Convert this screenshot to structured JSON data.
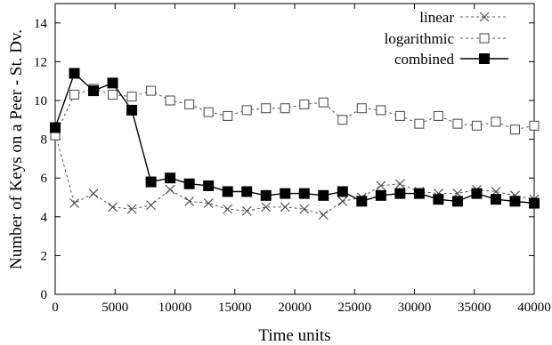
{
  "chart_data": {
    "type": "line",
    "xlabel": "Time units",
    "ylabel": "Number of Keys on a Peer - St. Dv.",
    "xlim": [
      0,
      40000
    ],
    "ylim": [
      0,
      15
    ],
    "xticks": [
      "0",
      "5000",
      "10000",
      "15000",
      "20000",
      "25000",
      "30000",
      "35000",
      "40000"
    ],
    "yticks": [
      "0",
      "2",
      "4",
      "6",
      "8",
      "10",
      "12",
      "14"
    ],
    "legend_position": "top-right",
    "grid": false,
    "series": [
      {
        "name": "linear",
        "marker": "cross",
        "line": "dashed",
        "x": [
          0,
          1600,
          3200,
          4800,
          6400,
          8000,
          9600,
          11200,
          12800,
          14400,
          16000,
          17600,
          19200,
          20800,
          22400,
          24000,
          25600,
          27200,
          28800,
          30400,
          32000,
          33600,
          35200,
          36800,
          38400,
          40000
        ],
        "y": [
          8.3,
          4.7,
          5.2,
          4.5,
          4.4,
          4.6,
          5.4,
          4.8,
          4.7,
          4.4,
          4.3,
          4.5,
          4.5,
          4.4,
          4.1,
          4.8,
          5.0,
          5.6,
          5.7,
          5.3,
          5.2,
          5.2,
          5.4,
          5.3,
          5.1,
          4.9
        ]
      },
      {
        "name": "logarithmic",
        "marker": "open-square",
        "line": "dashed",
        "x": [
          0,
          1600,
          3200,
          4800,
          6400,
          8000,
          9600,
          11200,
          12800,
          14400,
          16000,
          17600,
          19200,
          20800,
          22400,
          24000,
          25600,
          27200,
          28800,
          30400,
          32000,
          33600,
          35200,
          36800,
          38400,
          40000
        ],
        "y": [
          8.2,
          10.3,
          10.6,
          10.3,
          10.2,
          10.5,
          10.0,
          9.8,
          9.4,
          9.2,
          9.5,
          9.6,
          9.6,
          9.8,
          9.9,
          9.0,
          9.6,
          9.5,
          9.2,
          8.8,
          9.2,
          8.8,
          8.7,
          8.9,
          8.5,
          8.7
        ]
      },
      {
        "name": "combined",
        "marker": "filled-square",
        "line": "solid",
        "x": [
          0,
          1600,
          3200,
          4800,
          6400,
          8000,
          9600,
          11200,
          12800,
          14400,
          16000,
          17600,
          19200,
          20800,
          22400,
          24000,
          25600,
          27200,
          28800,
          30400,
          32000,
          33600,
          35200,
          36800,
          38400,
          40000
        ],
        "y": [
          8.6,
          11.4,
          10.5,
          10.9,
          9.5,
          5.8,
          6.0,
          5.7,
          5.6,
          5.3,
          5.3,
          5.1,
          5.2,
          5.2,
          5.1,
          5.3,
          4.8,
          5.1,
          5.2,
          5.2,
          4.9,
          4.8,
          5.2,
          4.9,
          4.8,
          4.7
        ]
      }
    ]
  }
}
